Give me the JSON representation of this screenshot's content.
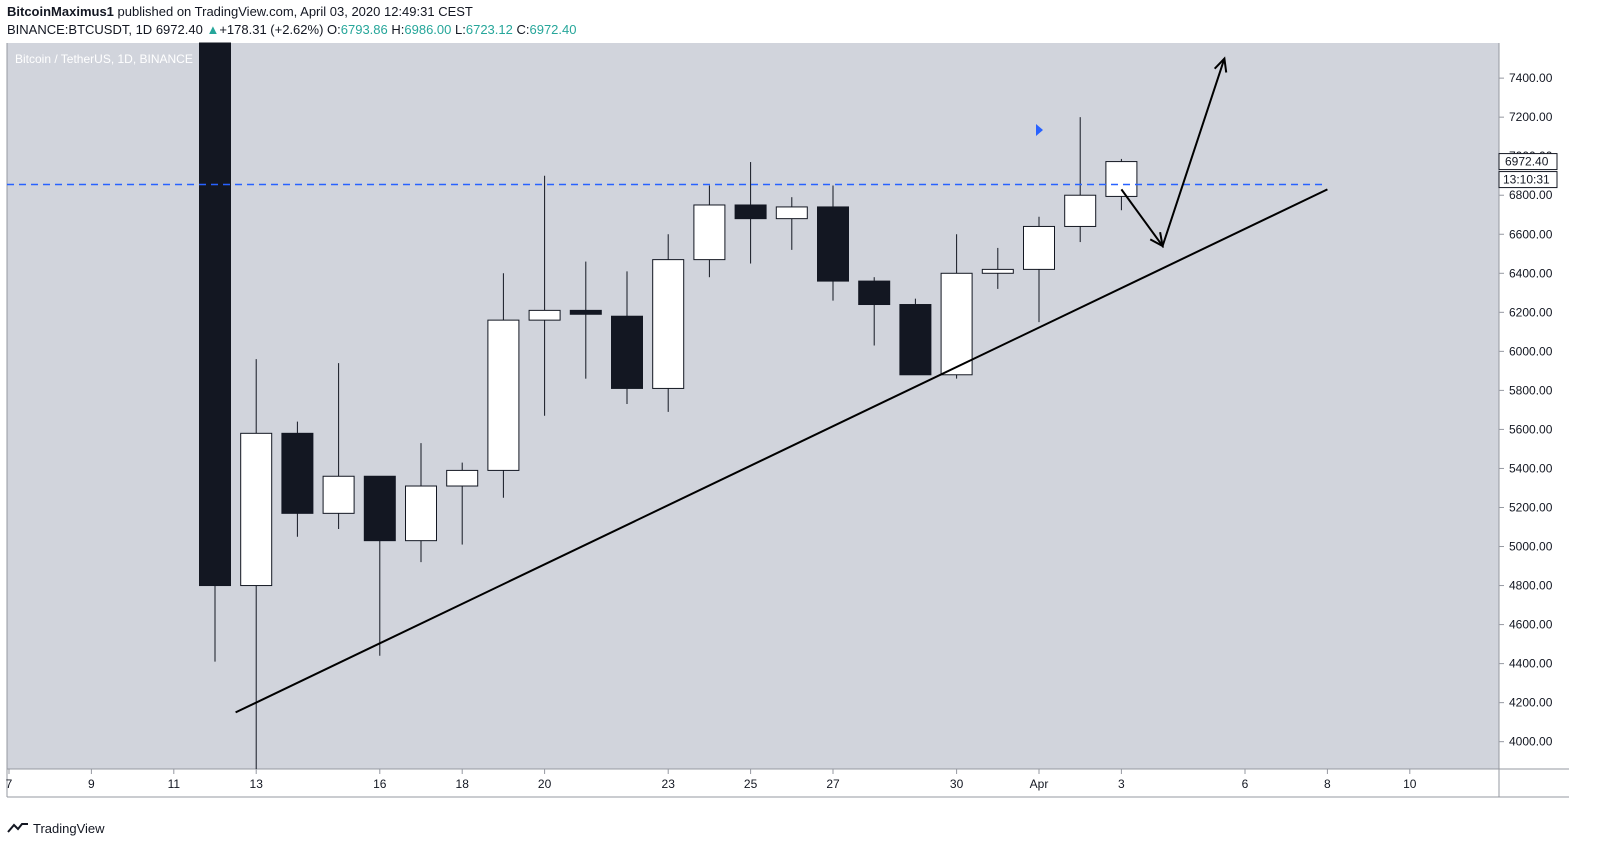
{
  "header": {
    "author": "BitcoinMaximus1",
    "published": "published on TradingView.com, April 03, 2020 12:49:31 CEST",
    "symbol": "BINANCE:BTCUSDT, 1D",
    "last": "6972.40",
    "change": "+178.31 (+2.62%)",
    "o_label": "O:",
    "o": "6793.86",
    "h_label": "H:",
    "h": "6986.00",
    "l_label": "L:",
    "l": "6723.12",
    "c_label": "C:",
    "c": "6972.40"
  },
  "chart_data": {
    "type": "candlestick",
    "title": "Bitcoin / TetherUS, 1D, BINANCE",
    "colors": {
      "background": "#d1d4dc",
      "up": "#ffffff",
      "down": "#131722",
      "hline": "#2962ff",
      "arrow": "#2962ff"
    },
    "x_ticks": [
      {
        "label": "7",
        "day": 7
      },
      {
        "label": "9",
        "day": 9
      },
      {
        "label": "11",
        "day": 11
      },
      {
        "label": "13",
        "day": 13
      },
      {
        "label": "16",
        "day": 16
      },
      {
        "label": "18",
        "day": 18
      },
      {
        "label": "20",
        "day": 20
      },
      {
        "label": "23",
        "day": 23
      },
      {
        "label": "25",
        "day": 25
      },
      {
        "label": "27",
        "day": 27
      },
      {
        "label": "30",
        "day": 30
      },
      {
        "label": "Apr",
        "day": 32
      },
      {
        "label": "3",
        "day": 34
      },
      {
        "label": "6",
        "day": 37
      },
      {
        "label": "8",
        "day": 39
      },
      {
        "label": "10",
        "day": 41
      }
    ],
    "y_ticks": [
      4000,
      4200,
      4400,
      4600,
      4800,
      5000,
      5200,
      5400,
      5600,
      5800,
      6000,
      6200,
      6400,
      6600,
      6800,
      7000,
      7200,
      7400
    ],
    "ylim": [
      3860,
      7580
    ],
    "candles": [
      {
        "day": 12,
        "o": 7950,
        "h": 7950,
        "l": 4410,
        "c": 4800
      },
      {
        "day": 13,
        "o": 4800,
        "h": 5960,
        "l": 3860,
        "c": 5580
      },
      {
        "day": 14,
        "o": 5580,
        "h": 5640,
        "l": 5050,
        "c": 5170
      },
      {
        "day": 15,
        "o": 5170,
        "h": 5940,
        "l": 5090,
        "c": 5360
      },
      {
        "day": 16,
        "o": 5360,
        "h": 5360,
        "l": 4440,
        "c": 5030
      },
      {
        "day": 17,
        "o": 5030,
        "h": 5530,
        "l": 4920,
        "c": 5310
      },
      {
        "day": 18,
        "o": 5310,
        "h": 5430,
        "l": 5010,
        "c": 5390
      },
      {
        "day": 19,
        "o": 5390,
        "h": 6400,
        "l": 5250,
        "c": 6160
      },
      {
        "day": 20,
        "o": 6160,
        "h": 6900,
        "l": 5670,
        "c": 6210
      },
      {
        "day": 21,
        "o": 6210,
        "h": 6460,
        "l": 5860,
        "c": 6190
      },
      {
        "day": 22,
        "o": 6180,
        "h": 6410,
        "l": 5730,
        "c": 5810
      },
      {
        "day": 23,
        "o": 5810,
        "h": 6600,
        "l": 5690,
        "c": 6470
      },
      {
        "day": 24,
        "o": 6470,
        "h": 6850,
        "l": 6380,
        "c": 6750
      },
      {
        "day": 25,
        "o": 6750,
        "h": 6970,
        "l": 6450,
        "c": 6680
      },
      {
        "day": 26,
        "o": 6680,
        "h": 6790,
        "l": 6520,
        "c": 6740
      },
      {
        "day": 27,
        "o": 6740,
        "h": 6850,
        "l": 6260,
        "c": 6360
      },
      {
        "day": 28,
        "o": 6360,
        "h": 6380,
        "l": 6030,
        "c": 6240
      },
      {
        "day": 29,
        "o": 6240,
        "h": 6270,
        "l": 5880,
        "c": 5880
      },
      {
        "day": 30,
        "o": 5880,
        "h": 6600,
        "l": 5860,
        "c": 6400
      },
      {
        "day": 31,
        "o": 6400,
        "h": 6530,
        "l": 6320,
        "c": 6420
      },
      {
        "day": 32,
        "o": 6420,
        "h": 6690,
        "l": 6150,
        "c": 6640
      },
      {
        "day": 33,
        "o": 6640,
        "h": 7200,
        "l": 6560,
        "c": 6800
      },
      {
        "day": 34,
        "o": 6793.86,
        "h": 6986,
        "l": 6723.12,
        "c": 6972.4
      }
    ],
    "hline": 6855,
    "trendline": [
      {
        "day": 12.5,
        "y": 4150
      },
      {
        "day": 39,
        "y": 6830
      }
    ],
    "projection": [
      {
        "day": 34,
        "y": 6830
      },
      {
        "day": 35,
        "y": 6540
      },
      {
        "day": 36.5,
        "y": 7500
      }
    ],
    "price_label": "6972.40",
    "countdown": "13:10:31",
    "marker_day": 32
  },
  "footer": {
    "brand": "TradingView"
  }
}
